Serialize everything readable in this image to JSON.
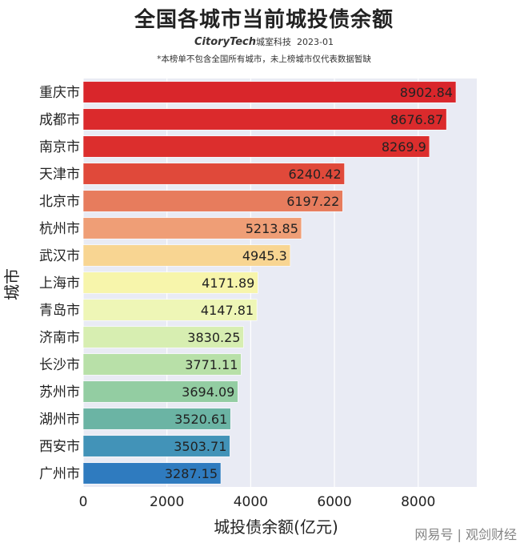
{
  "title": "全国各城市当前城投债余额",
  "brand": {
    "logo": "CitoryTech",
    "name": "城室科技",
    "date": "2023-01"
  },
  "note": "*本榜单不包含全国所有城市，未上榜城市仅代表数据暂缺",
  "watermark": "网易号 | 观剑财经",
  "chart_data": {
    "type": "bar",
    "orientation": "horizontal",
    "categories": [
      "重庆市",
      "成都市",
      "南京市",
      "天津市",
      "北京市",
      "杭州市",
      "武汉市",
      "上海市",
      "青岛市",
      "济南市",
      "长沙市",
      "苏州市",
      "湖州市",
      "西安市",
      "广州市"
    ],
    "values": [
      8902.84,
      8676.87,
      8269.9,
      6240.42,
      6197.22,
      5213.85,
      4945.3,
      4171.89,
      4147.81,
      3830.25,
      3771.11,
      3694.09,
      3520.61,
      3503.71,
      3287.15
    ],
    "value_labels": [
      "8902.84",
      "8676.87",
      "8269.9",
      "6240.42",
      "6197.22",
      "5213.85",
      "4945.3",
      "4171.89",
      "4147.81",
      "3830.25",
      "3771.11",
      "3694.09",
      "3520.61",
      "3503.71",
      "3287.15"
    ],
    "colors": [
      "#d9262b",
      "#db2a2c",
      "#dc2e2d",
      "#e0493a",
      "#e77c5d",
      "#ef9e76",
      "#f8d592",
      "#f7f5ab",
      "#eef6b6",
      "#d7eeb1",
      "#b8e0a8",
      "#93cda2",
      "#6bb4a4",
      "#4293b8",
      "#2f7bbf"
    ],
    "xlabel": "城投债余额(亿元)",
    "ylabel": "城市",
    "xlim": [
      0,
      9400
    ],
    "xticks": [
      0,
      2000,
      4000,
      6000,
      8000
    ],
    "grid": true
  }
}
